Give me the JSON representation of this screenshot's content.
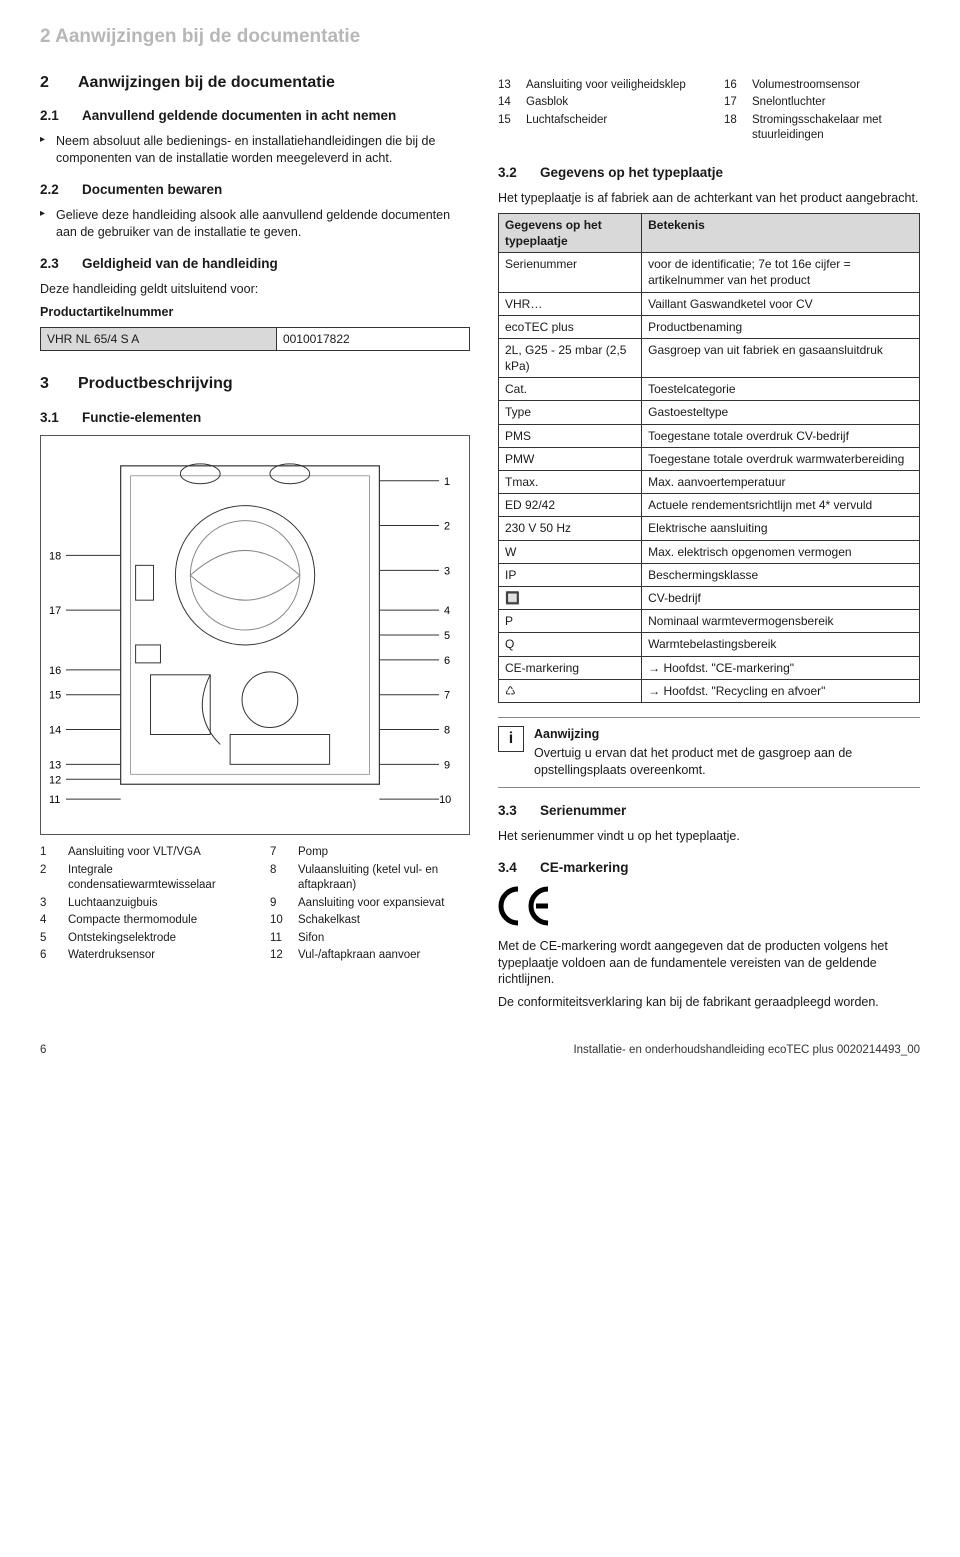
{
  "header": "2 Aanwijzingen bij de documentatie",
  "left": {
    "s2": {
      "num": "2",
      "title": "Aanwijzingen bij de documentatie"
    },
    "s21": {
      "num": "2.1",
      "title": "Aanvullend geldende documenten in acht nemen",
      "bullet": "Neem absoluut alle bedienings- en installatiehandleidingen die bij de componenten van de installatie worden meegeleverd in acht."
    },
    "s22": {
      "num": "2.2",
      "title": "Documenten bewaren",
      "bullet": "Gelieve deze handleiding alsook alle aanvullend geldende documenten aan de gebruiker van de installatie te geven."
    },
    "s23": {
      "num": "2.3",
      "title": "Geldigheid van de handleiding",
      "text": "Deze handleiding geldt uitsluitend voor:",
      "tableHeader": "Productartikelnummer",
      "tableRow": {
        "a": "VHR NL 65/4 S A",
        "b": "0010017822"
      }
    },
    "s3": {
      "num": "3",
      "title": "Productbeschrijving"
    },
    "s31": {
      "num": "3.1",
      "title": "Functie-elementen"
    },
    "diagramLabels": [
      "1",
      "2",
      "3",
      "4",
      "5",
      "6",
      "7",
      "8",
      "9",
      "10",
      "11",
      "12",
      "13",
      "14",
      "15",
      "16",
      "17",
      "18"
    ],
    "legendLeft": [
      {
        "n": "1",
        "t": "Aansluiting voor VLT/VGA"
      },
      {
        "n": "2",
        "t": "Integrale condensatiewarmtewisselaar"
      },
      {
        "n": "3",
        "t": "Luchtaanzuigbuis"
      },
      {
        "n": "4",
        "t": "Compacte thermomodule"
      },
      {
        "n": "5",
        "t": "Ontstekingselektrode"
      },
      {
        "n": "6",
        "t": "Waterdruksensor"
      }
    ],
    "legendRight": [
      {
        "n": "7",
        "t": "Pomp"
      },
      {
        "n": "8",
        "t": "Vulaansluiting (ketel vul- en aftapkraan)"
      },
      {
        "n": "9",
        "t": "Aansluiting voor expansievat"
      },
      {
        "n": "10",
        "t": "Schakelkast"
      },
      {
        "n": "11",
        "t": "Sifon"
      },
      {
        "n": "12",
        "t": "Vul-/aftapkraan aanvoer"
      }
    ]
  },
  "right": {
    "topLegendLeft": [
      {
        "n": "13",
        "t": "Aansluiting voor veiligheidsklep"
      },
      {
        "n": "14",
        "t": "Gasblok"
      },
      {
        "n": "15",
        "t": "Luchtafscheider"
      }
    ],
    "topLegendRight": [
      {
        "n": "16",
        "t": "Volumestroomsensor"
      },
      {
        "n": "17",
        "t": "Snelontluchter"
      },
      {
        "n": "18",
        "t": "Stromingsschakelaar met stuurleidingen"
      }
    ],
    "s32": {
      "num": "3.2",
      "title": "Gegevens op het typeplaatje",
      "intro": "Het typeplaatje is af fabriek aan de achterkant van het product aangebracht.",
      "head": {
        "a": "Gegevens op het typeplaatje",
        "b": "Betekenis"
      },
      "rows": [
        {
          "a": "Serienummer",
          "b": "voor de identificatie; 7e tot 16e cijfer = artikelnummer van het product"
        },
        {
          "a": "VHR…",
          "b": "Vaillant Gaswandketel voor CV"
        },
        {
          "a": "ecoTEC plus",
          "b": "Productbenaming"
        },
        {
          "a": "2L, G25 - 25 mbar (2,5 kPa)",
          "b": "Gasgroep van uit fabriek en gasaansluitdruk"
        },
        {
          "a": "Cat.",
          "b": "Toestelcategorie"
        },
        {
          "a": "Type",
          "b": "Gastoesteltype"
        },
        {
          "a": "PMS",
          "b": "Toegestane totale overdruk CV-bedrijf"
        },
        {
          "a": "PMW",
          "b": "Toegestane totale overdruk warmwaterbereiding"
        },
        {
          "a": "Tmax.",
          "b": "Max. aanvoertemperatuur"
        },
        {
          "a": "ED 92/42",
          "b": "Actuele rendementsrichtlijn met 4* vervuld"
        },
        {
          "a": "230 V 50 Hz",
          "b": "Elektrische aansluiting"
        },
        {
          "a": "W",
          "b": "Max. elektrisch opgenomen vermogen"
        },
        {
          "a": "IP",
          "b": "Beschermingsklasse"
        },
        {
          "a": "🔲",
          "b": "CV-bedrijf"
        },
        {
          "a": "P",
          "b": "Nominaal warmtevermogensbereik"
        },
        {
          "a": "Q",
          "b": "Warmtebelastingsbereik"
        },
        {
          "a": "CE-markering",
          "b": "→ Hoofdst. \"CE-markering\""
        },
        {
          "a": "♺",
          "b": "→ Hoofdst. \"Recycling en afvoer\""
        }
      ]
    },
    "note": {
      "title": "Aanwijzing",
      "text": "Overtuig u ervan dat het product met de gasgroep aan de opstellingsplaats overeenkomt."
    },
    "s33": {
      "num": "3.3",
      "title": "Serienummer",
      "text": "Het serienummer vindt u op het typeplaatje."
    },
    "s34": {
      "num": "3.4",
      "title": "CE-markering"
    },
    "ceText1": "Met de CE-markering wordt aangegeven dat de producten volgens het typeplaatje voldoen aan de fundamentele vereisten van de geldende richtlijnen.",
    "ceText2": "De conformiteitsverklaring kan bij de fabrikant geraadpleegd worden."
  },
  "footer": {
    "page": "6",
    "text": "Installatie- en onderhoudshandleiding ecoTEC plus 0020214493_00"
  }
}
